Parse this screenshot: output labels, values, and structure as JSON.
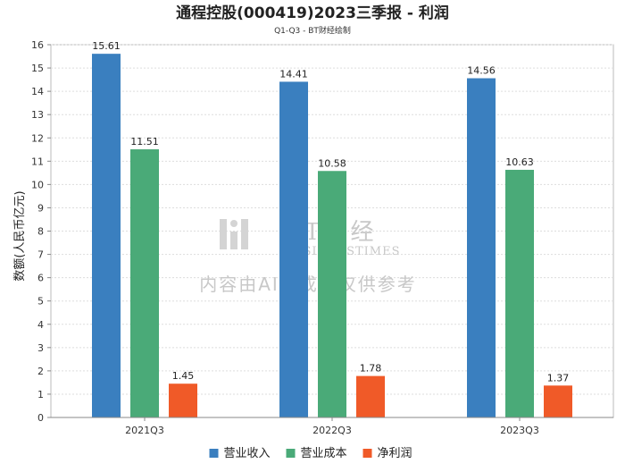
{
  "chart_data": {
    "type": "bar",
    "title": "通程控股(000419)2023三季报 - 利润",
    "subtitle": "Q1-Q3 - BT财经绘制",
    "xlabel": "",
    "ylabel": "数额(人民币亿元)",
    "ylim": [
      0,
      16
    ],
    "yticks": [
      0,
      1,
      2,
      3,
      4,
      5,
      6,
      7,
      8,
      9,
      10,
      11,
      12,
      13,
      14,
      15,
      16
    ],
    "grid": true,
    "legend_position": "bottom",
    "categories": [
      "2021Q3",
      "2022Q3",
      "2023Q3"
    ],
    "series": [
      {
        "name": "营业收入",
        "color": "#3a7fbf",
        "values": [
          15.61,
          14.41,
          14.56
        ],
        "labels": [
          "15.61",
          "14.41",
          "14.56"
        ]
      },
      {
        "name": "营业成本",
        "color": "#4aaa78",
        "values": [
          11.51,
          10.58,
          10.63
        ],
        "labels": [
          "11.51",
          "10.58",
          "10.63"
        ]
      },
      {
        "name": "净利润",
        "color": "#f05a28",
        "values": [
          1.45,
          1.78,
          1.37
        ],
        "labels": [
          "1.45",
          "1.78",
          "1.37"
        ]
      }
    ]
  },
  "watermark": {
    "logo_text": "BT财经",
    "logo_sub": "BUSINESSTIMES",
    "notice": "内容由AI生成，仅供参考"
  }
}
